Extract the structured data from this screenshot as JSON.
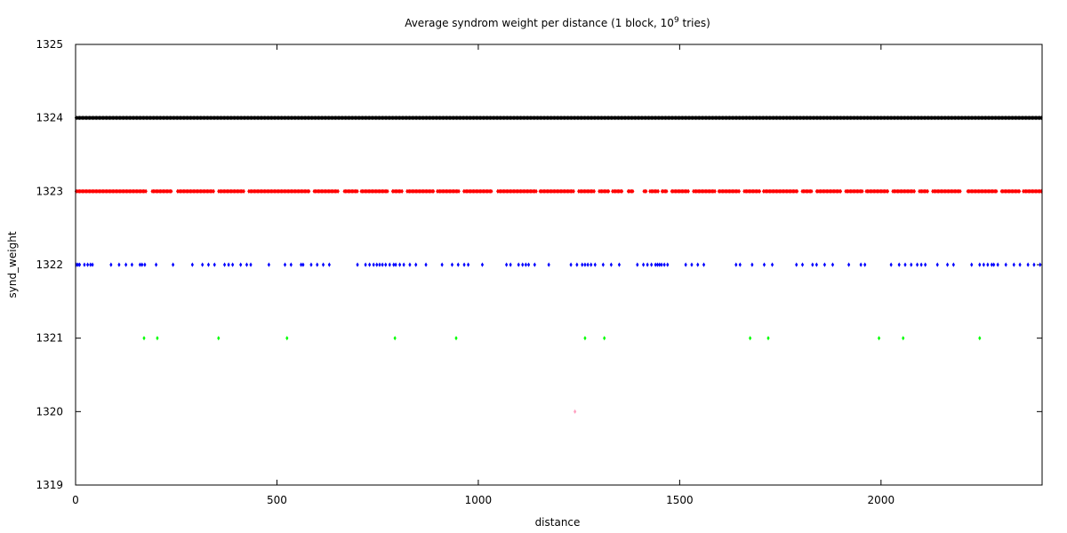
{
  "chart_data": {
    "type": "scatter",
    "title": "Average syndrom weight per distance (1 block, 10",
    "title_superscript": "9",
    "title_suffix": " tries)",
    "xlabel": "distance",
    "ylabel": "synd_weight",
    "xlim": [
      0,
      2400
    ],
    "ylim": [
      1319,
      1325
    ],
    "xticks": [
      0,
      500,
      1000,
      1500,
      2000
    ],
    "yticks": [
      1319,
      1320,
      1321,
      1322,
      1323,
      1324,
      1325
    ],
    "grid": false,
    "legend": "none",
    "series": [
      {
        "y": 1324,
        "color": "#000000",
        "coverage": "dense",
        "x_range": [
          0,
          2400
        ]
      },
      {
        "y": 1323,
        "color": "#ff0000",
        "coverage": "dense",
        "x_range": [
          0,
          2400
        ],
        "gaps": [
          [
            178,
            188
          ],
          [
            240,
            250
          ],
          [
            345,
            352
          ],
          [
            420,
            428
          ],
          [
            582,
            590
          ],
          [
            655,
            664
          ],
          [
            702,
            708
          ],
          [
            778,
            786
          ],
          [
            812,
            820
          ],
          [
            890,
            896
          ],
          [
            955,
            962
          ],
          [
            1035,
            1045
          ],
          [
            1145,
            1152
          ],
          [
            1238,
            1246
          ],
          [
            1290,
            1298
          ],
          [
            1325,
            1330
          ],
          [
            1360,
            1370
          ],
          [
            1385,
            1408
          ],
          [
            1418,
            1425
          ],
          [
            1450,
            1455
          ],
          [
            1470,
            1478
          ],
          [
            1525,
            1533
          ],
          [
            1590,
            1596
          ],
          [
            1650,
            1658
          ],
          [
            1700,
            1707
          ],
          [
            1795,
            1802
          ],
          [
            1830,
            1838
          ],
          [
            1903,
            1910
          ],
          [
            1955,
            1962
          ],
          [
            2020,
            2026
          ],
          [
            2085,
            2093
          ],
          [
            2118,
            2126
          ],
          [
            2200,
            2213
          ],
          [
            2290,
            2296
          ],
          [
            2345,
            2352
          ]
        ]
      },
      {
        "y": 1322,
        "color": "#0000ff",
        "coverage": "sparse",
        "x": [
          2,
          6,
          10,
          22,
          30,
          37,
          42,
          88,
          108,
          125,
          140,
          160,
          165,
          172,
          200,
          242,
          290,
          315,
          330,
          345,
          370,
          380,
          390,
          410,
          425,
          435,
          480,
          520,
          535,
          560,
          565,
          585,
          600,
          615,
          630,
          700,
          720,
          730,
          740,
          748,
          755,
          762,
          770,
          780,
          790,
          795,
          805,
          815,
          830,
          845,
          870,
          910,
          935,
          950,
          965,
          975,
          1010,
          1070,
          1080,
          1100,
          1110,
          1118,
          1125,
          1140,
          1175,
          1230,
          1245,
          1258,
          1265,
          1272,
          1280,
          1290,
          1310,
          1330,
          1350,
          1395,
          1410,
          1420,
          1430,
          1440,
          1445,
          1450,
          1455,
          1462,
          1470,
          1515,
          1530,
          1545,
          1560,
          1640,
          1650,
          1680,
          1710,
          1730,
          1790,
          1805,
          1830,
          1840,
          1860,
          1880,
          1920,
          1950,
          1960,
          2025,
          2045,
          2060,
          2075,
          2090,
          2100,
          2110,
          2140,
          2165,
          2180,
          2225,
          2245,
          2255,
          2265,
          2275,
          2280,
          2290,
          2310,
          2330,
          2345,
          2365,
          2380,
          2395
        ],
        "note": ""
      },
      {
        "y": 1321,
        "color": "#00ff00",
        "coverage": "sparse",
        "x": [
          170,
          203,
          355,
          525,
          793,
          945,
          1265,
          1313,
          1675,
          1720,
          1995,
          2055,
          2245
        ]
      },
      {
        "y": 1320,
        "color": "#ffa0c0",
        "coverage": "sparse",
        "x": [
          1240
        ]
      }
    ]
  }
}
